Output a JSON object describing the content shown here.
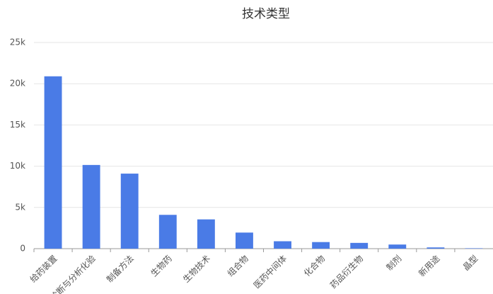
{
  "chart_data": {
    "type": "bar",
    "title": "技术类型",
    "categories": [
      "给药装置",
      "诊断与分析化验",
      "制备方法",
      "生物药",
      "生物技术",
      "组合物",
      "医药中间体",
      "化合物",
      "药品衍生物",
      "制剂",
      "新用途",
      "晶型"
    ],
    "values": [
      20900,
      10150,
      9100,
      4100,
      3550,
      1950,
      900,
      800,
      700,
      500,
      150,
      50
    ],
    "color": "#4a7be6",
    "ylim": [
      0,
      25000
    ],
    "yticks": [
      0,
      {
        "value": 5000,
        "label": "5k"
      },
      {
        "value": 10000,
        "label": "10k"
      },
      {
        "value": 15000,
        "label": "15k"
      },
      {
        "value": 20000,
        "label": "20k"
      },
      {
        "value": 25000,
        "label": "25k"
      }
    ],
    "grid": true
  }
}
